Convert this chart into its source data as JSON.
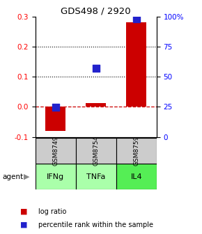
{
  "title": "GDS498 / 2920",
  "samples": [
    "GSM8749",
    "GSM8754",
    "GSM8759"
  ],
  "agents": [
    "IFNg",
    "TNFa",
    "IL4"
  ],
  "log_ratios": [
    -0.08,
    0.012,
    0.28
  ],
  "percentile_ranks": [
    0.245,
    0.57,
    0.98
  ],
  "bar_color": "#cc0000",
  "dot_color": "#2222cc",
  "ylim": [
    -0.1,
    0.3
  ],
  "yticks_left": [
    -0.1,
    0.0,
    0.1,
    0.2,
    0.3
  ],
  "yticks_right_labels": [
    "0",
    "25",
    "50",
    "75",
    "100%"
  ],
  "yticks_right_vals": [
    -0.1,
    0.0,
    0.1,
    0.2,
    0.3
  ],
  "grid_vals": [
    0.1,
    0.2
  ],
  "agent_colors": [
    "#aaffaa",
    "#aaffaa",
    "#55ee55"
  ],
  "sample_bg": "#cccccc",
  "bar_width": 0.5,
  "dot_size": 50,
  "zero_line_color": "#cc0000",
  "zero_line_style": "--",
  "legend_bar_label": "log ratio",
  "legend_dot_label": "percentile rank within the sample"
}
